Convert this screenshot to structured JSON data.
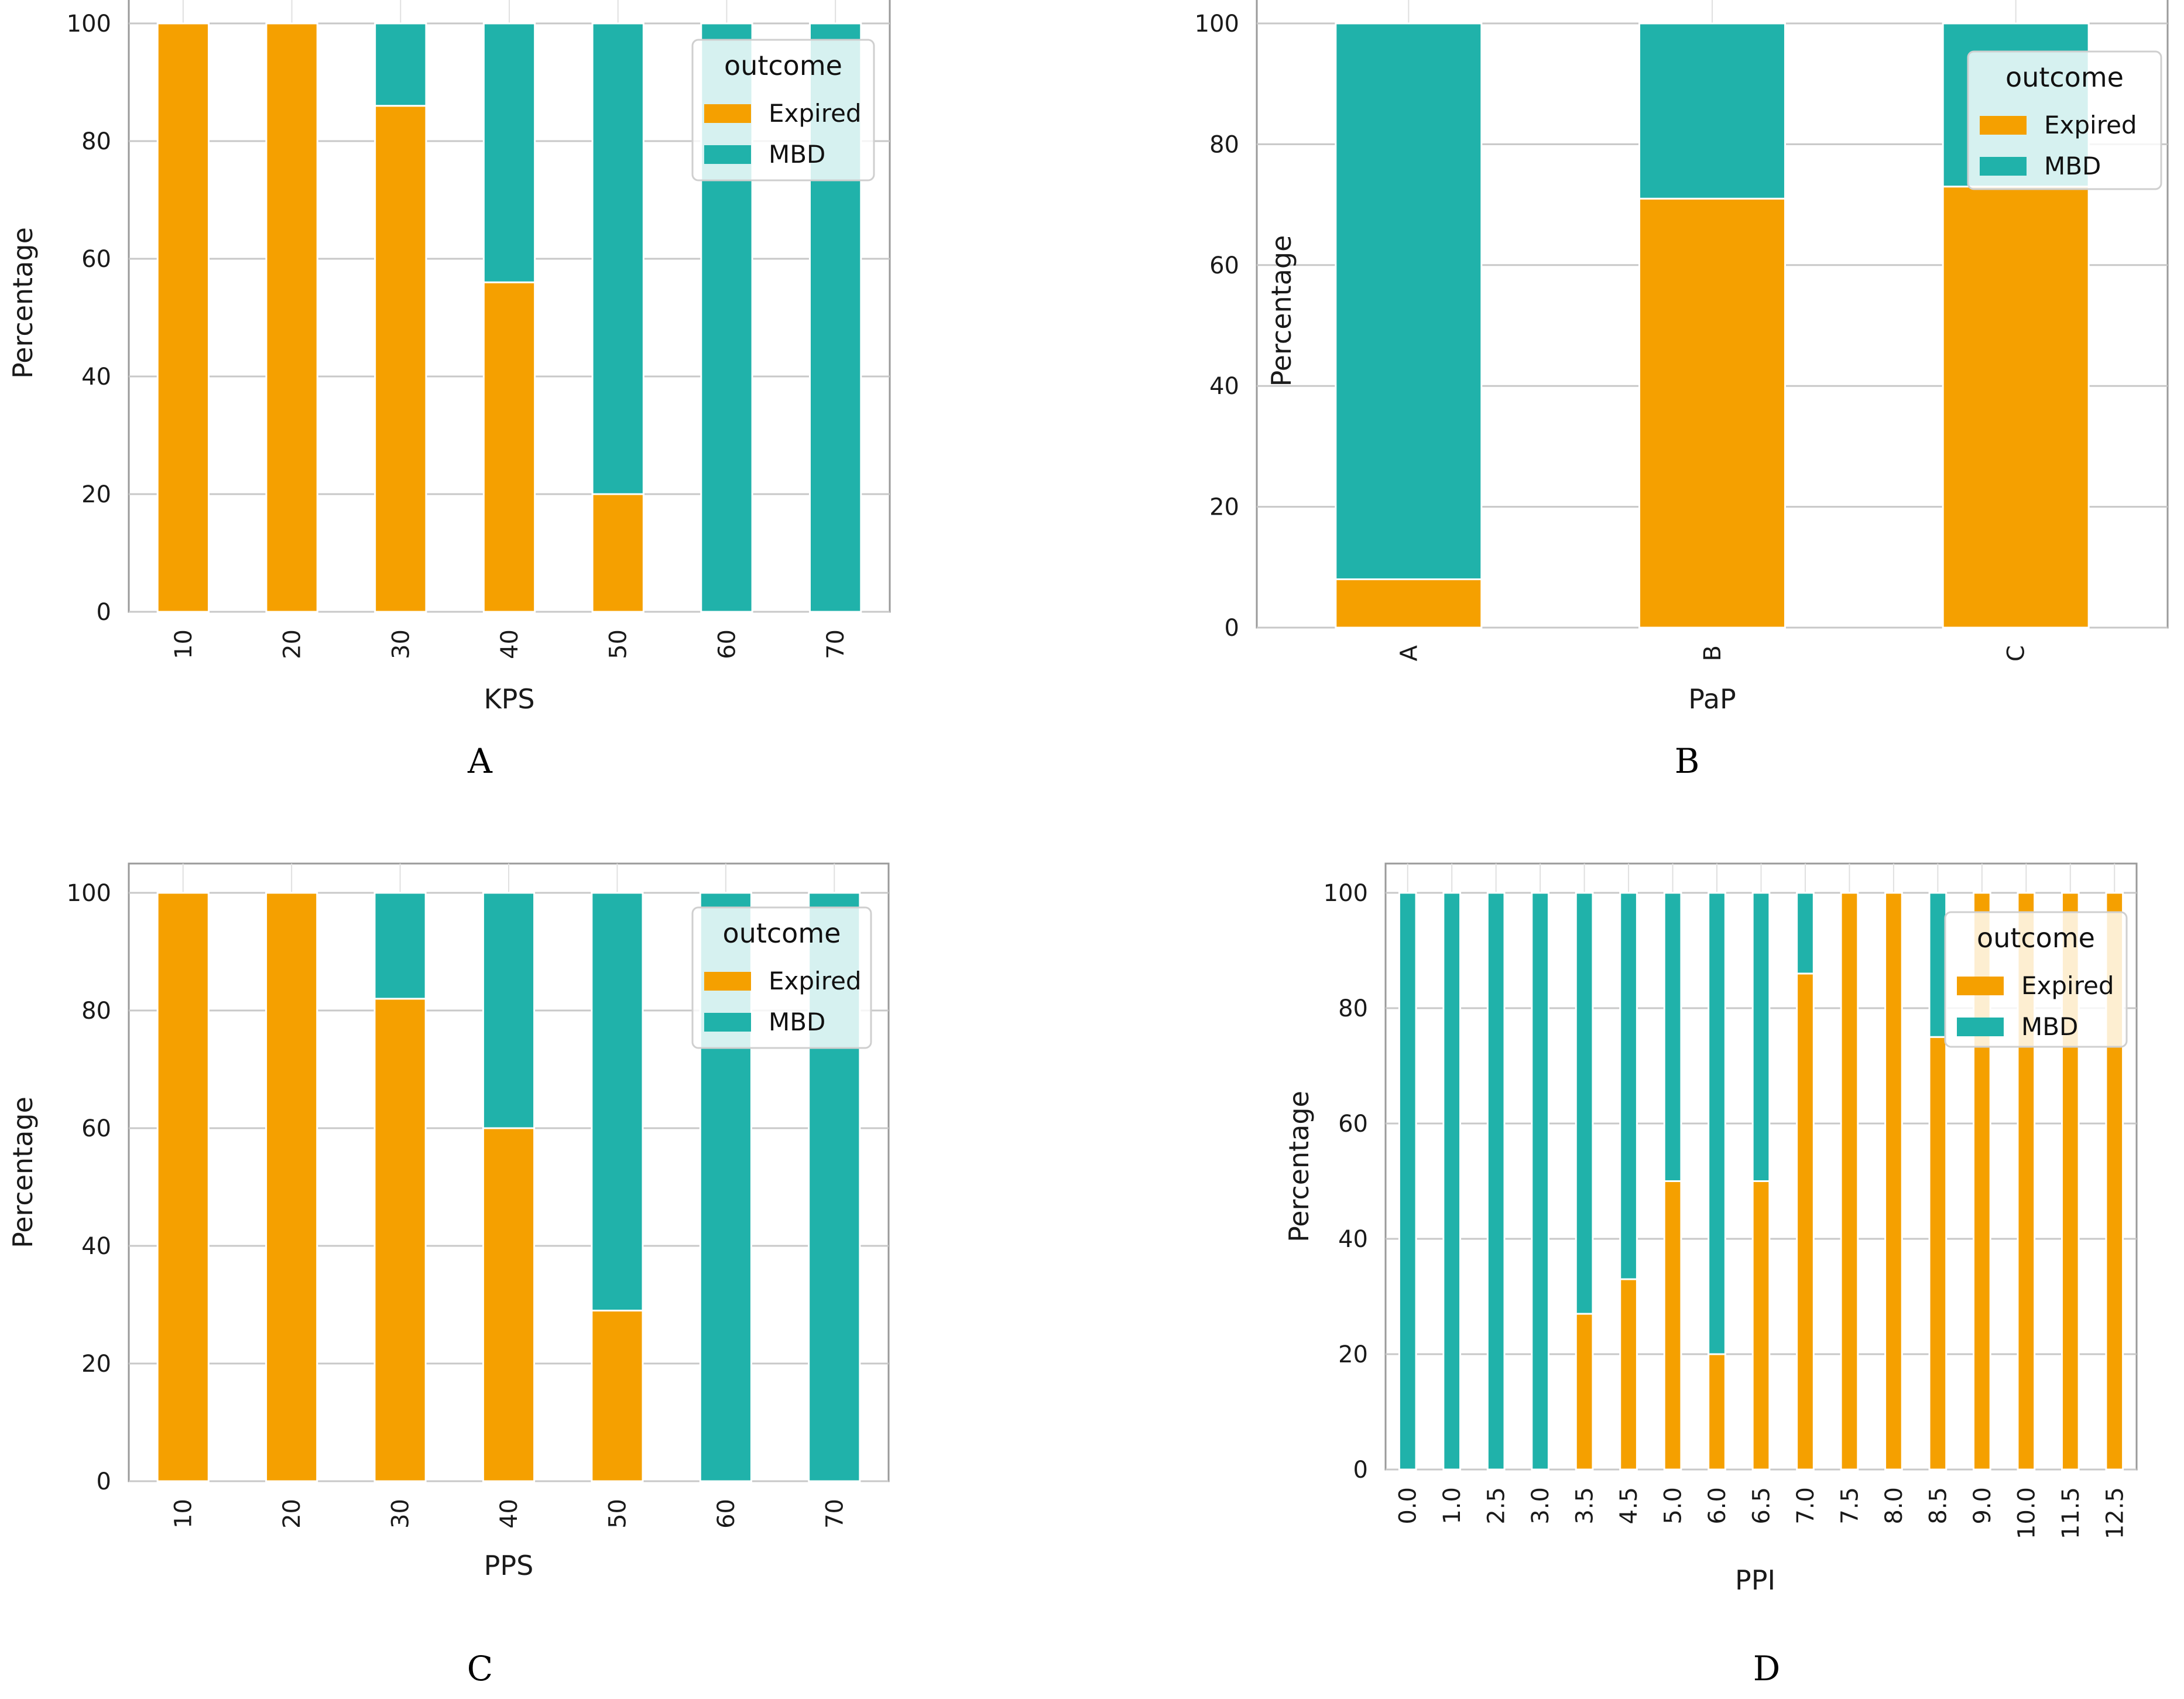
{
  "colors": {
    "expired": "#F5A000",
    "mbd": "#20B2AA",
    "grid": "#c8c8c8",
    "axis": "#9a9a9a"
  },
  "chart_data": [
    {
      "id": "A",
      "type": "bar",
      "stacked": true,
      "panel_label": "A",
      "xlabel": "KPS",
      "ylabel": "Percentage",
      "ylim": [
        0,
        100
      ],
      "yticks": [
        0,
        20,
        40,
        60,
        80,
        100
      ],
      "categories": [
        "10",
        "20",
        "30",
        "40",
        "50",
        "60",
        "70"
      ],
      "series": [
        {
          "name": "Expired",
          "values": [
            100,
            100,
            86,
            56,
            20,
            0,
            0
          ]
        },
        {
          "name": "MBD",
          "values": [
            0,
            0,
            14,
            44,
            80,
            100,
            100
          ]
        }
      ],
      "legend": {
        "title": "outcome",
        "entries": [
          "Expired",
          "MBD"
        ],
        "position": "top-right"
      }
    },
    {
      "id": "B",
      "type": "bar",
      "stacked": true,
      "panel_label": "B",
      "xlabel": "PaP",
      "ylabel": "Percentage",
      "ylim": [
        0,
        100
      ],
      "yticks": [
        0,
        20,
        40,
        60,
        80,
        100
      ],
      "categories": [
        "A",
        "B",
        "C"
      ],
      "series": [
        {
          "name": "Expired",
          "values": [
            8,
            71,
            73
          ]
        },
        {
          "name": "MBD",
          "values": [
            92,
            29,
            27
          ]
        }
      ],
      "legend": {
        "title": "outcome",
        "entries": [
          "Expired",
          "MBD"
        ],
        "position": "top-right"
      }
    },
    {
      "id": "C",
      "type": "bar",
      "stacked": true,
      "panel_label": "C",
      "xlabel": "PPS",
      "ylabel": "Percentage",
      "ylim": [
        0,
        100
      ],
      "yticks": [
        0,
        20,
        40,
        60,
        80,
        100
      ],
      "categories": [
        "10",
        "20",
        "30",
        "40",
        "50",
        "60",
        "70"
      ],
      "series": [
        {
          "name": "Expired",
          "values": [
            100,
            100,
            82,
            60,
            29,
            0,
            0
          ]
        },
        {
          "name": "MBD",
          "values": [
            0,
            0,
            18,
            40,
            71,
            100,
            100
          ]
        }
      ],
      "legend": {
        "title": "outcome",
        "entries": [
          "Expired",
          "MBD"
        ],
        "position": "top-right"
      }
    },
    {
      "id": "D",
      "type": "bar",
      "stacked": true,
      "panel_label": "D",
      "xlabel": "PPI",
      "ylabel": "Percentage",
      "ylim": [
        0,
        100
      ],
      "yticks": [
        0,
        20,
        40,
        60,
        80,
        100
      ],
      "categories": [
        "0.0",
        "1.0",
        "2.5",
        "3.0",
        "3.5",
        "4.5",
        "5.0",
        "6.0",
        "6.5",
        "7.0",
        "7.5",
        "8.0",
        "8.5",
        "9.0",
        "10.0",
        "11.5",
        "12.5"
      ],
      "series": [
        {
          "name": "Expired",
          "values": [
            0,
            0,
            0,
            0,
            27,
            33,
            50,
            20,
            50,
            86,
            100,
            100,
            75,
            100,
            100,
            100,
            100
          ]
        },
        {
          "name": "MBD",
          "values": [
            100,
            100,
            100,
            100,
            73,
            67,
            50,
            80,
            50,
            14,
            0,
            0,
            25,
            0,
            0,
            0,
            0
          ]
        }
      ],
      "legend": {
        "title": "outcome",
        "entries": [
          "Expired",
          "MBD"
        ],
        "position": "top-right"
      }
    }
  ]
}
